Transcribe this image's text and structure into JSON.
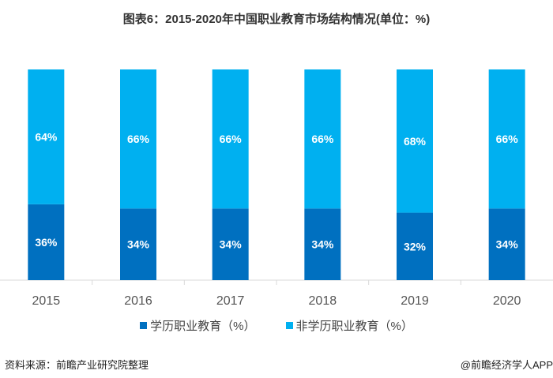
{
  "chart_data": {
    "type": "bar",
    "stacked": true,
    "title": "图表6：2015-2020年中国职业教育市场结构情况(单位：%)",
    "categories": [
      "2015",
      "2016",
      "2017",
      "2018",
      "2019",
      "2020"
    ],
    "series": [
      {
        "name": "学历职业教育（%）",
        "values": [
          36,
          34,
          34,
          34,
          32,
          34
        ],
        "color": "#0070c0"
      },
      {
        "name": "非学历职业教育（%）",
        "values": [
          64,
          66,
          66,
          66,
          68,
          66
        ],
        "color": "#00b0f0"
      }
    ],
    "ylim": [
      0,
      100
    ],
    "grid": false,
    "legend": "bottom"
  },
  "footer": {
    "source": "资料来源：前瞻产业研究院整理",
    "credit": "@前瞻经济学人APP"
  }
}
